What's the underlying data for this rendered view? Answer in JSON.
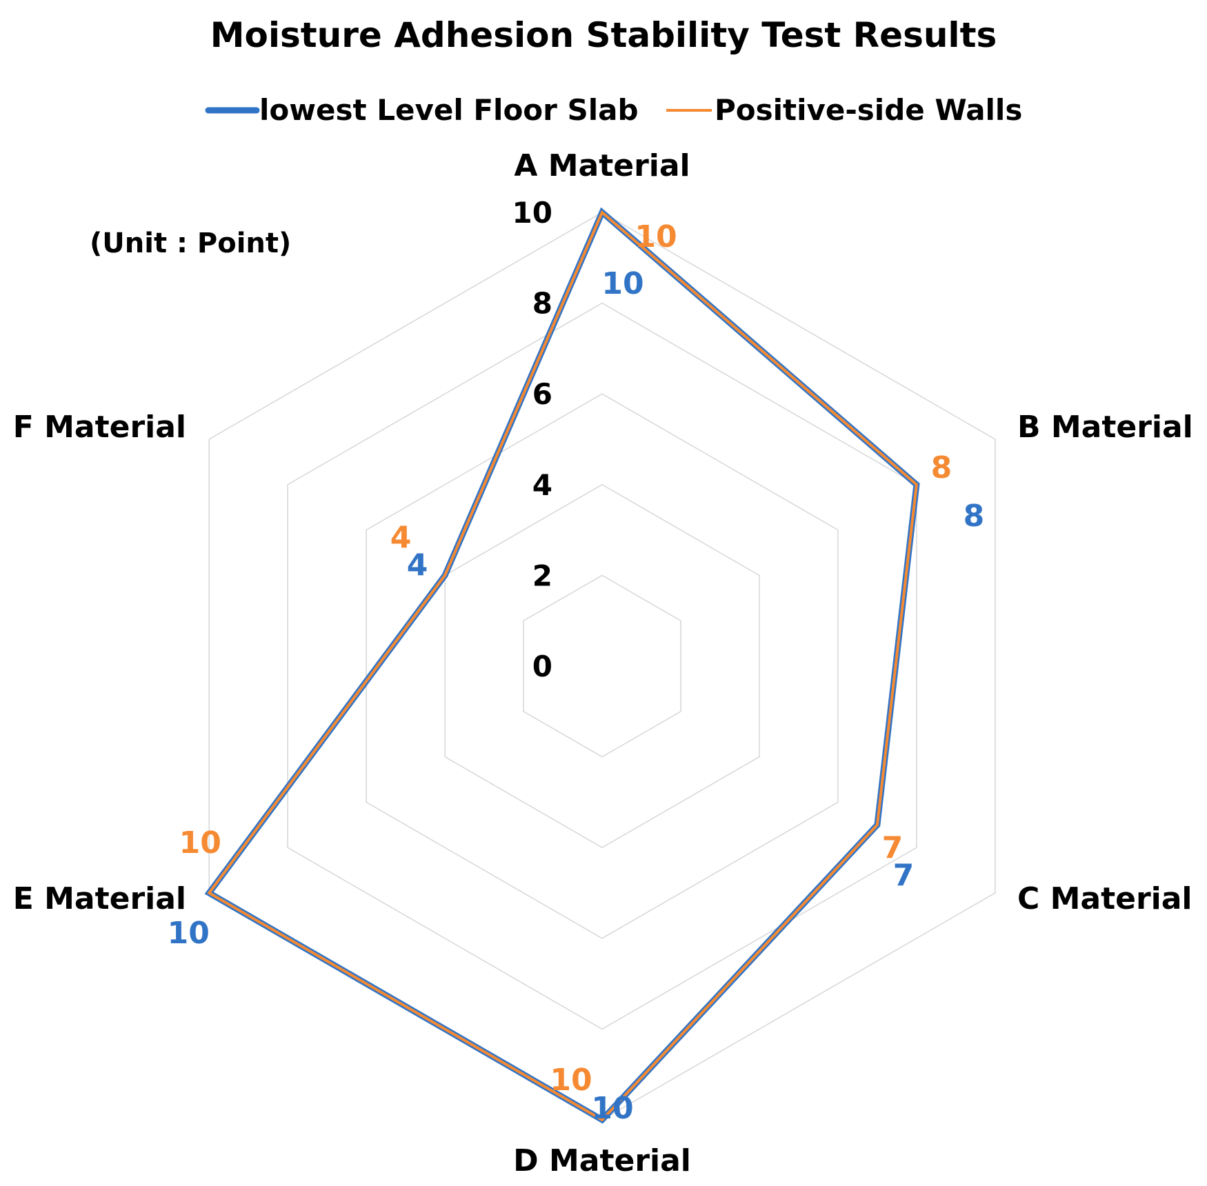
{
  "chart_data": {
    "type": "radar",
    "title": "Moisture Adhesion Stability Test Results",
    "unit_note": "(Unit : Point)",
    "categories": [
      "A Material",
      "B Material",
      "C Material",
      "D Material",
      "E Material",
      "F Material"
    ],
    "r_ticks": [
      "0",
      "2",
      "4",
      "6",
      "8",
      "10"
    ],
    "r_range": [
      0,
      10
    ],
    "grid": true,
    "legend_position": "top",
    "series": [
      {
        "name": "lowest Level Floor Slab",
        "values": [
          10,
          8,
          7,
          10,
          10,
          4
        ],
        "color": "#3174c6"
      },
      {
        "name": "Positive-side Walls",
        "values": [
          10,
          8,
          7,
          10,
          10,
          4
        ],
        "color": "#f58a33"
      }
    ],
    "data_labels": [
      [
        "10",
        "8",
        "7",
        "10",
        "10",
        "4"
      ],
      [
        "10",
        "8",
        "7",
        "10",
        "10",
        "4"
      ]
    ]
  }
}
